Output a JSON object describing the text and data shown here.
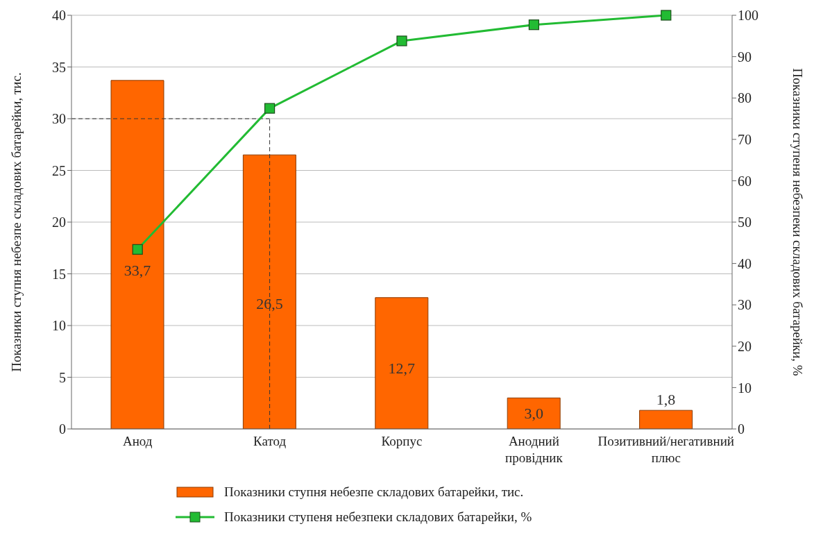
{
  "chart_data": {
    "type": "bar",
    "categories": [
      "Анод",
      "Катод",
      "Корпус",
      "Анодний провідник",
      "Позитивний/негативний плюс"
    ],
    "ylabel": "Показники ступня небезпе складових батарейки, тис.",
    "y2label": "Показники ступеня небезпеки складових батарейки, %",
    "series": [
      {
        "name": "Показники ступня небезпе складових батарейки, тис.",
        "color": "#ff6600",
        "values": [
          33.7,
          26.5,
          12.7,
          3.0,
          1.8
        ],
        "value_labels": [
          "33,7",
          "26,5",
          "12,7",
          "3,0",
          "1,8"
        ]
      },
      {
        "name": "Показники ступеня небезпеки складових батарейки, %",
        "type": "line",
        "axis": "y2",
        "color": "#22bb33",
        "marker": "square",
        "line_style": "solid",
        "values": [
          43.4,
          77.5,
          93.8,
          97.7,
          100
        ]
      }
    ],
    "ylim": [
      0,
      40
    ],
    "yticks": [
      0,
      5,
      10,
      15,
      20,
      25,
      30,
      35,
      40
    ],
    "y2lim": [
      0,
      100
    ],
    "y2ticks": [
      0,
      10,
      20,
      30,
      40,
      50,
      60,
      70,
      80,
      90,
      100
    ],
    "ref_lines": [
      {
        "axis": "y",
        "value": 30,
        "line_style": "dashed",
        "color": "#333333"
      },
      {
        "axis": "x",
        "value": "Катод",
        "line_style": "dashed",
        "color": "#333333"
      }
    ],
    "grid": "y",
    "legend": "bottom"
  }
}
